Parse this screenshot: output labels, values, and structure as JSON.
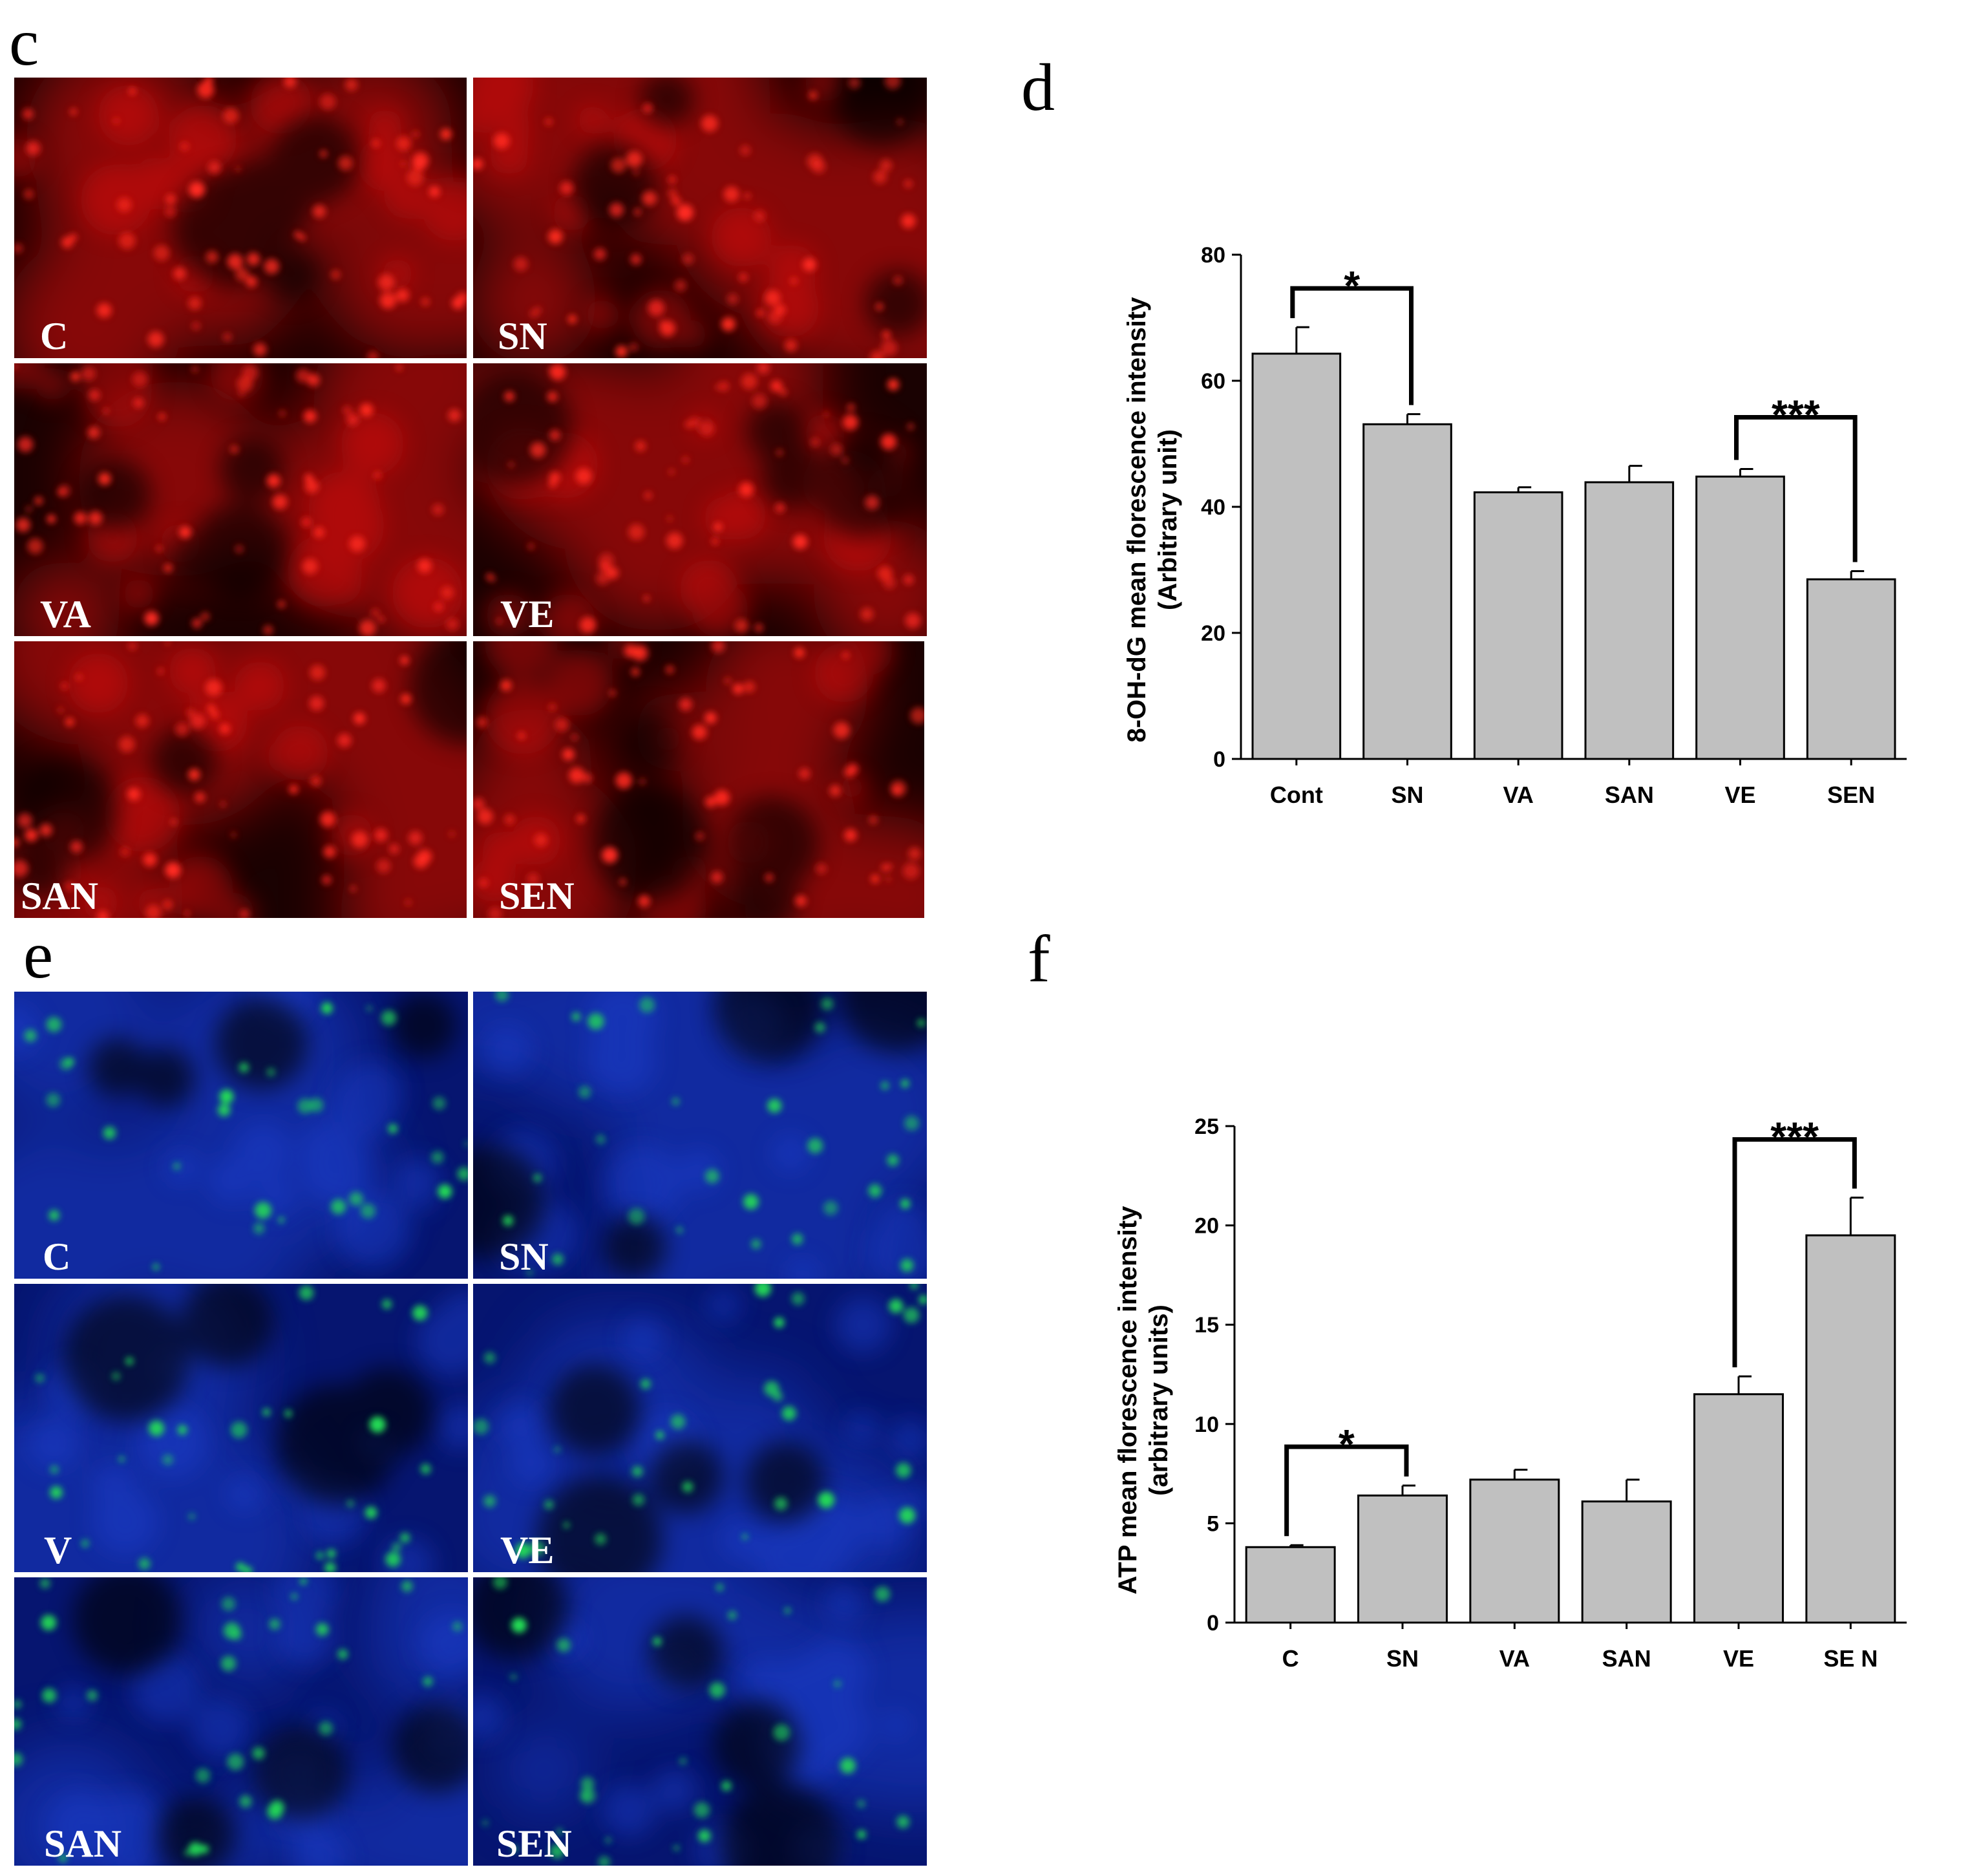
{
  "panels": {
    "c": "c",
    "d": "d",
    "e": "e",
    "f": "f"
  },
  "micrographs": {
    "c": {
      "stain_color": "#e01010",
      "background_color": "#1a0202",
      "labels": [
        "C",
        "SN",
        "VA",
        "VE",
        "SAN",
        "SEN"
      ]
    },
    "e": {
      "stain_color": "#1a3fd0",
      "dot_color": "#22dd55",
      "background_color": "#061570",
      "labels": [
        "C",
        "SN",
        "V",
        "VE",
        "SAN",
        "SEN"
      ]
    }
  },
  "chart_data": [
    {
      "type": "bar",
      "panel": "d",
      "categories": [
        "Cont",
        "SN",
        "VA",
        "SAN",
        "VE",
        "SEN"
      ],
      "values": [
        64.3,
        53.1,
        42.3,
        43.9,
        44.8,
        28.5
      ],
      "errors": [
        4.2,
        1.6,
        0.8,
        2.6,
        1.2,
        1.3
      ],
      "ylabel_line1": "8-OH-dG  mean florescence intensity",
      "ylabel_line2": "(Arbitrary unit)",
      "ylim": [
        0,
        80
      ],
      "yticks": [
        0,
        20,
        40,
        60,
        80
      ],
      "bar_color": "#c0c0c0",
      "grid": false,
      "significance": [
        {
          "from": 0,
          "to": 1,
          "label": "*"
        },
        {
          "from": 4,
          "to": 5,
          "label": "***"
        }
      ]
    },
    {
      "type": "bar",
      "panel": "f",
      "categories": [
        "C",
        "SN",
        "VA",
        "SAN",
        "VE",
        "SE N"
      ],
      "values": [
        3.8,
        6.4,
        7.2,
        6.1,
        11.5,
        19.5
      ],
      "errors": [
        0.1,
        0.5,
        0.5,
        1.1,
        0.9,
        1.9
      ],
      "ylabel_line1": "ATP mean florescence intensity",
      "ylabel_line2": "(arbitrary units)",
      "ylim": [
        0,
        25
      ],
      "yticks": [
        0,
        5,
        10,
        15,
        20,
        25
      ],
      "bar_color": "#c0c0c0",
      "grid": false,
      "significance": [
        {
          "from": 0,
          "to": 1,
          "label": "*"
        },
        {
          "from": 4,
          "to": 5,
          "label": "***"
        }
      ]
    }
  ]
}
